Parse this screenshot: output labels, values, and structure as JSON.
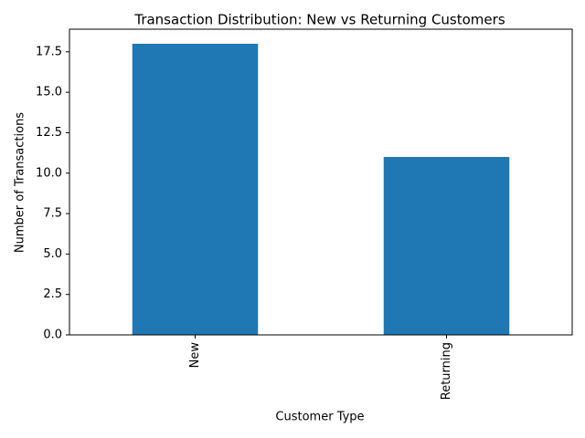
{
  "chart_data": {
    "type": "bar",
    "title": "Transaction Distribution: New vs Returning Customers",
    "x_label": "Customer Type",
    "y_label": "Number of Transactions",
    "categories": [
      "New",
      "Returning"
    ],
    "values": [
      18,
      11
    ],
    "color": "#1f77b4",
    "ylim": [
      0,
      18.9
    ],
    "yticks": [
      {
        "value": 0,
        "label": "0.0"
      },
      2.5,
      {
        "value": 5,
        "label": "5.0"
      },
      7.5,
      {
        "value": 10,
        "label": "10.0"
      },
      12.5,
      {
        "value": 15,
        "label": "15.0"
      },
      17.5
    ],
    "grid": false
  }
}
